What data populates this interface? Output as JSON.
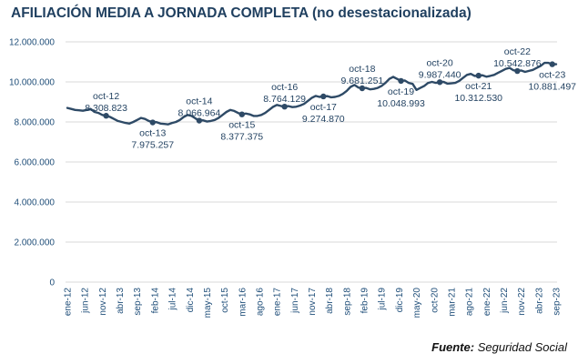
{
  "source": {
    "label": "Fuente:",
    "text": "Seguridad Social"
  },
  "chart_data": {
    "type": "line",
    "title": "AFILIACIÓN MEDIA A JORNADA COMPLETA (no desestacionalizada)",
    "xlabel": "",
    "ylabel": "",
    "ylim": [
      0,
      12000000
    ],
    "y_ticks": [
      0,
      2000000,
      4000000,
      6000000,
      8000000,
      10000000,
      12000000
    ],
    "y_tick_labels": [
      "0",
      "2.000.000",
      "4.000.000",
      "6.000.000",
      "8.000.000",
      "10.000.000",
      "12.000.000"
    ],
    "x_tick_labels": [
      "ene-12",
      "jun-12",
      "nov-12",
      "abr-13",
      "sep-13",
      "feb-14",
      "jul-14",
      "dic-14",
      "may-15",
      "oct-15",
      "mar-16",
      "ago-16",
      "ene-17",
      "jun-17",
      "nov-17",
      "abr-18",
      "sep-18",
      "feb-19",
      "jul-19",
      "dic-19",
      "may-20",
      "oct-20",
      "mar-21",
      "ago-21",
      "ene-22",
      "jun-22",
      "nov-22",
      "abr-23",
      "sep-23"
    ],
    "grid": "horizontal",
    "color": "#2e4a66",
    "series": [
      {
        "values": [
          8700000,
          8650000,
          8600000,
          8580000,
          8560000,
          8600000,
          8650000,
          8500000,
          8450000,
          8350000,
          8308823,
          8250000,
          8150000,
          8050000,
          8000000,
          7950000,
          7920000,
          8000000,
          8100000,
          8200000,
          8150000,
          8050000,
          7975257,
          7990000,
          7920000,
          7900000,
          7880000,
          7950000,
          8000000,
          8100000,
          8250000,
          8350000,
          8300000,
          8180000,
          8066964,
          8080000,
          8020000,
          8050000,
          8100000,
          8200000,
          8350000,
          8500000,
          8600000,
          8550000,
          8450000,
          8377375,
          8420000,
          8380000,
          8300000,
          8300000,
          8350000,
          8450000,
          8600000,
          8750000,
          8850000,
          8800000,
          8764129,
          8790000,
          8740000,
          8760000,
          8820000,
          8900000,
          9050000,
          9200000,
          9300000,
          9250000,
          9274870,
          9290000,
          9230000,
          9250000,
          9300000,
          9400000,
          9550000,
          9750000,
          9850000,
          9720000,
          9681251,
          9700000,
          9630000,
          9650000,
          9700000,
          9800000,
          9950000,
          10150000,
          10250000,
          10150000,
          10048993,
          10070000,
          9950000,
          9900000,
          9600000,
          9700000,
          9800000,
          9950000,
          10000000,
          9950000,
          9987440,
          10000000,
          9910000,
          9930000,
          9950000,
          10050000,
          10200000,
          10350000,
          10400000,
          10300000,
          10312530,
          10330000,
          10260000,
          10300000,
          10350000,
          10450000,
          10550000,
          10650000,
          10700000,
          10580000,
          10542876,
          10570000,
          10500000,
          10550000,
          10600000,
          10700000,
          10800000,
          10950000,
          10950000,
          10881497,
          10881497
        ]
      }
    ],
    "annotations": [
      {
        "label": "oct-12",
        "value_text": "8.308.823",
        "index": 10,
        "pos": "above"
      },
      {
        "label": "oct-13",
        "value_text": "7.975.257",
        "index": 22,
        "pos": "below"
      },
      {
        "label": "oct-14",
        "value_text": "8.066.964",
        "index": 34,
        "pos": "above"
      },
      {
        "label": "oct-15",
        "value_text": "8.377.375",
        "index": 45,
        "pos": "below"
      },
      {
        "label": "oct-16",
        "value_text": "8.764.129",
        "index": 56,
        "pos": "above"
      },
      {
        "label": "oct-17",
        "value_text": "9.274.870",
        "index": 66,
        "pos": "below"
      },
      {
        "label": "oct-18",
        "value_text": "9.681.251",
        "index": 76,
        "pos": "above"
      },
      {
        "label": "oct-19",
        "value_text": "10.048.993",
        "index": 86,
        "pos": "below"
      },
      {
        "label": "oct-20",
        "value_text": "9.987.440",
        "index": 96,
        "pos": "above"
      },
      {
        "label": "oct-21",
        "value_text": "10.312.530",
        "index": 106,
        "pos": "below"
      },
      {
        "label": "oct-22",
        "value_text": "10.542.876",
        "index": 116,
        "pos": "above"
      },
      {
        "label": "oct-23",
        "value_text": "10.881.497",
        "index": 125,
        "pos": "below"
      }
    ]
  }
}
